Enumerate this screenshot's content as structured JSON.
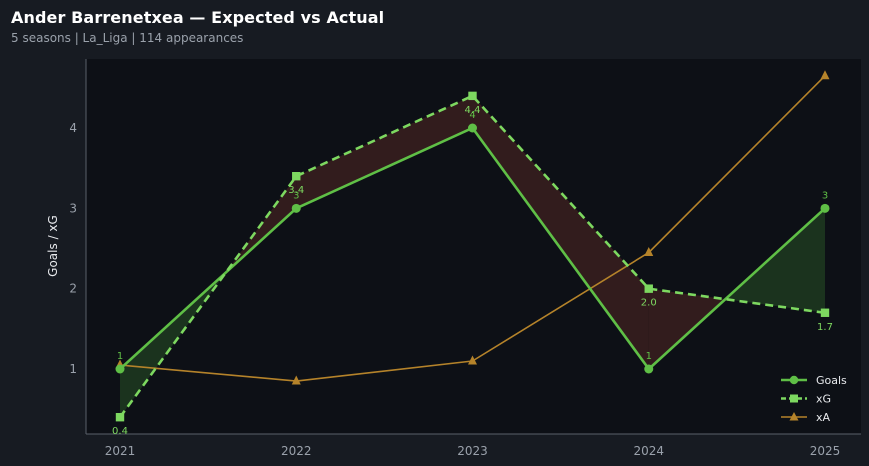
{
  "header": {
    "title": "Ander Barrenetxea — Expected vs Actual",
    "subtitle": "5 seasons | La_Liga | 114 appearances"
  },
  "chart_data": {
    "type": "line",
    "categories": [
      "2021",
      "2022",
      "2023",
      "2024",
      "2025"
    ],
    "ylabel": "Goals / xG",
    "ylim": [
      0.2,
      4.7
    ],
    "yticks": [
      1,
      2,
      3,
      4
    ],
    "grid": false,
    "legend_position": "bottom-right",
    "series": [
      {
        "name": "Goals",
        "values": [
          1,
          3,
          4,
          1,
          3
        ],
        "labels": [
          "1",
          "3",
          "4",
          "1",
          "3"
        ],
        "color": "#5fbf46",
        "marker": "circle",
        "style": "solid"
      },
      {
        "name": "xG",
        "values": [
          0.4,
          3.4,
          4.4,
          2.0,
          1.7
        ],
        "labels": [
          "0.4",
          "3.4",
          "4.4",
          "2.0",
          "1.7"
        ],
        "color": "#7dd860",
        "marker": "square",
        "style": "dashed"
      },
      {
        "name": "xA",
        "values": [
          1.05,
          0.85,
          1.1,
          2.45,
          4.65
        ],
        "color": "#b5832a",
        "marker": "triangle",
        "style": "solid"
      }
    ],
    "fill_over_color": "#1e3a20",
    "fill_under_color": "#3a1e1e"
  }
}
